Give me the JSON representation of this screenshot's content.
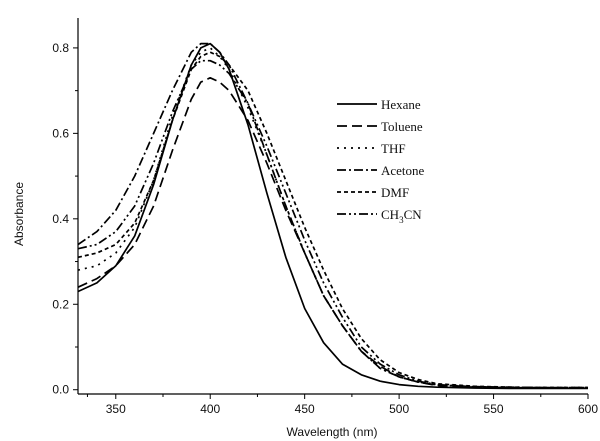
{
  "chart_data": {
    "type": "line",
    "title": "",
    "xlabel": "Wavelength (nm)",
    "ylabel": "Absorbance",
    "xlim": [
      330,
      600
    ],
    "ylim": [
      -0.01,
      0.87
    ],
    "xticks": [
      350,
      400,
      450,
      500,
      550,
      600
    ],
    "yticks": [
      0.0,
      0.2,
      0.4,
      0.6,
      0.8
    ],
    "xtick_labels": [
      "350",
      "400",
      "450",
      "500",
      "550",
      "600"
    ],
    "ytick_labels": [
      "0.0",
      "0.2",
      "0.4",
      "0.6",
      "0.8"
    ],
    "grid": false,
    "legend_position": "right",
    "series": [
      {
        "name": "Hexane",
        "legend_main": "Hexane",
        "legend_sub": "",
        "legend_after": "",
        "dash": "",
        "x": [
          330,
          340,
          350,
          360,
          370,
          380,
          390,
          395,
          400,
          405,
          410,
          420,
          430,
          440,
          450,
          460,
          470,
          480,
          490,
          500,
          510,
          520,
          540,
          560,
          580,
          600
        ],
        "y": [
          0.23,
          0.25,
          0.29,
          0.36,
          0.48,
          0.63,
          0.76,
          0.8,
          0.81,
          0.79,
          0.75,
          0.62,
          0.46,
          0.31,
          0.19,
          0.11,
          0.06,
          0.035,
          0.02,
          0.012,
          0.008,
          0.006,
          0.004,
          0.003,
          0.003,
          0.003
        ]
      },
      {
        "name": "Toluene",
        "legend_main": "Toluene",
        "legend_sub": "",
        "legend_after": "",
        "dash": "10,5",
        "x": [
          330,
          340,
          350,
          360,
          370,
          380,
          390,
          395,
          400,
          405,
          410,
          420,
          430,
          440,
          450,
          460,
          470,
          480,
          490,
          500,
          510,
          520,
          540,
          560,
          580,
          600
        ],
        "y": [
          0.24,
          0.26,
          0.29,
          0.34,
          0.43,
          0.56,
          0.68,
          0.72,
          0.73,
          0.72,
          0.7,
          0.63,
          0.53,
          0.42,
          0.32,
          0.22,
          0.15,
          0.09,
          0.055,
          0.03,
          0.018,
          0.01,
          0.006,
          0.005,
          0.004,
          0.004
        ]
      },
      {
        "name": "THF",
        "legend_main": "THF",
        "legend_sub": "",
        "legend_after": "",
        "dash": "2,5",
        "x": [
          330,
          340,
          350,
          360,
          370,
          380,
          390,
          395,
          400,
          405,
          410,
          420,
          430,
          440,
          450,
          460,
          470,
          480,
          490,
          500,
          510,
          520,
          540,
          560,
          580,
          600
        ],
        "y": [
          0.28,
          0.29,
          0.32,
          0.38,
          0.49,
          0.64,
          0.76,
          0.79,
          0.8,
          0.78,
          0.75,
          0.66,
          0.55,
          0.43,
          0.32,
          0.22,
          0.15,
          0.09,
          0.05,
          0.03,
          0.018,
          0.011,
          0.006,
          0.005,
          0.005,
          0.005
        ]
      },
      {
        "name": "Acetone",
        "legend_main": "Acetone",
        "legend_sub": "",
        "legend_after": "",
        "dash": "9,3,2,3",
        "x": [
          330,
          340,
          350,
          360,
          370,
          380,
          390,
          395,
          400,
          405,
          410,
          420,
          430,
          440,
          450,
          460,
          470,
          480,
          490,
          500,
          510,
          520,
          540,
          560,
          580,
          600
        ],
        "y": [
          0.34,
          0.37,
          0.42,
          0.5,
          0.6,
          0.7,
          0.79,
          0.81,
          0.81,
          0.79,
          0.76,
          0.67,
          0.55,
          0.43,
          0.32,
          0.22,
          0.15,
          0.09,
          0.05,
          0.03,
          0.018,
          0.011,
          0.007,
          0.006,
          0.005,
          0.005
        ]
      },
      {
        "name": "DMF",
        "legend_main": "DMF",
        "legend_sub": "",
        "legend_after": "",
        "dash": "4,3",
        "x": [
          330,
          340,
          350,
          360,
          370,
          380,
          390,
          395,
          400,
          405,
          410,
          420,
          430,
          440,
          450,
          460,
          470,
          480,
          490,
          500,
          510,
          520,
          540,
          560,
          580,
          600
        ],
        "y": [
          0.31,
          0.32,
          0.34,
          0.39,
          0.49,
          0.63,
          0.75,
          0.78,
          0.79,
          0.78,
          0.76,
          0.7,
          0.6,
          0.49,
          0.38,
          0.28,
          0.19,
          0.12,
          0.07,
          0.04,
          0.024,
          0.014,
          0.008,
          0.006,
          0.005,
          0.005
        ]
      },
      {
        "name": "CH3CN",
        "legend_main": "CH",
        "legend_sub": "3",
        "legend_after": "CN",
        "dash": "9,3,2,3,2,3",
        "x": [
          330,
          340,
          350,
          360,
          370,
          380,
          390,
          395,
          400,
          405,
          410,
          420,
          430,
          440,
          450,
          460,
          470,
          480,
          490,
          500,
          510,
          520,
          540,
          560,
          580,
          600
        ],
        "y": [
          0.33,
          0.34,
          0.37,
          0.43,
          0.53,
          0.65,
          0.75,
          0.77,
          0.77,
          0.76,
          0.74,
          0.67,
          0.57,
          0.46,
          0.35,
          0.25,
          0.17,
          0.1,
          0.06,
          0.035,
          0.02,
          0.012,
          0.007,
          0.005,
          0.005,
          0.005
        ]
      }
    ]
  }
}
